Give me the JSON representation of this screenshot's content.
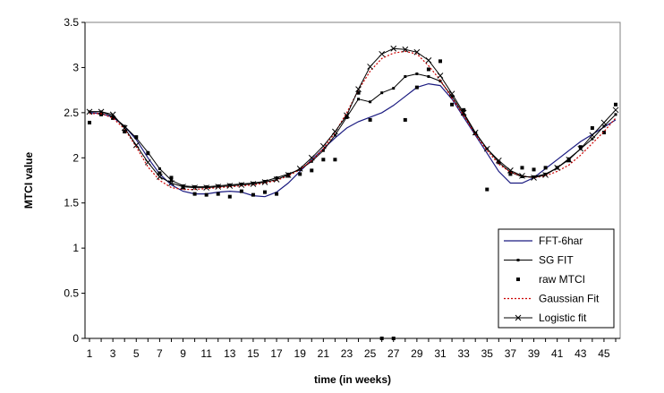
{
  "chart_data": {
    "type": "line",
    "title": "",
    "xlabel": "time  (in weeks)",
    "ylabel": "MTCI value",
    "xlim": [
      1,
      46
    ],
    "ylim": [
      0,
      3.5
    ],
    "x_ticks": [
      1,
      3,
      5,
      7,
      9,
      11,
      13,
      15,
      17,
      19,
      21,
      23,
      25,
      27,
      29,
      31,
      33,
      35,
      37,
      39,
      41,
      43,
      45
    ],
    "y_ticks": [
      0,
      0.5,
      1,
      1.5,
      2,
      2.5,
      3,
      3.5
    ],
    "x_tick_labels": [
      "1",
      "3",
      "5",
      "7",
      "9",
      "11",
      "13",
      "15",
      "17",
      "19",
      "21",
      "23",
      "25",
      "27",
      "29",
      "31",
      "33",
      "35",
      "37",
      "39",
      "41",
      "43",
      "45"
    ],
    "y_tick_labels": [
      "0",
      "0.5",
      "1",
      "1.5",
      "2",
      "2.5",
      "3",
      "3.5"
    ],
    "grid": false,
    "legend_position": "bottom-right",
    "x": [
      1,
      2,
      3,
      4,
      5,
      6,
      7,
      8,
      9,
      10,
      11,
      12,
      13,
      14,
      15,
      16,
      17,
      18,
      19,
      20,
      21,
      22,
      23,
      24,
      25,
      26,
      27,
      28,
      29,
      30,
      31,
      32,
      33,
      34,
      35,
      36,
      37,
      38,
      39,
      40,
      41,
      42,
      43,
      44,
      45,
      46
    ],
    "series": [
      {
        "name": "FFT-6har",
        "style": "line",
        "color": "#1a1a80",
        "values": [
          2.5,
          2.49,
          2.45,
          2.35,
          2.2,
          2.0,
          1.82,
          1.7,
          1.63,
          1.6,
          1.6,
          1.62,
          1.63,
          1.62,
          1.58,
          1.57,
          1.62,
          1.72,
          1.85,
          1.98,
          2.1,
          2.22,
          2.33,
          2.4,
          2.45,
          2.5,
          2.58,
          2.68,
          2.78,
          2.82,
          2.8,
          2.65,
          2.45,
          2.25,
          2.05,
          1.85,
          1.72,
          1.72,
          1.78,
          1.88,
          1.98,
          2.08,
          2.18,
          2.26,
          2.34,
          2.42
        ]
      },
      {
        "name": "SG FIT",
        "style": "line-square",
        "color": "#000000",
        "values": [
          2.51,
          2.51,
          2.46,
          2.35,
          2.22,
          2.06,
          1.88,
          1.75,
          1.69,
          1.68,
          1.68,
          1.69,
          1.7,
          1.71,
          1.72,
          1.74,
          1.78,
          1.82,
          1.87,
          1.96,
          2.08,
          2.25,
          2.45,
          2.65,
          2.62,
          2.72,
          2.77,
          2.9,
          2.93,
          2.9,
          2.85,
          2.68,
          2.48,
          2.27,
          2.1,
          1.95,
          1.84,
          1.79,
          1.79,
          1.82,
          1.89,
          1.99,
          2.1,
          2.21,
          2.35,
          2.48
        ]
      },
      {
        "name": "raw MTCI",
        "style": "marker",
        "color": "#000000",
        "values": [
          2.39,
          2.48,
          2.44,
          2.29,
          2.23,
          2.05,
          1.83,
          1.78,
          1.67,
          1.6,
          1.59,
          1.6,
          1.57,
          1.63,
          1.59,
          1.62,
          1.6,
          1.8,
          1.82,
          1.86,
          1.98,
          1.98,
          2.45,
          2.72,
          2.42,
          0.0,
          0.0,
          2.42,
          2.78,
          2.98,
          3.07,
          2.59,
          2.53,
          2.27,
          1.65,
          1.95,
          1.82,
          1.89,
          1.87,
          1.89,
          1.89,
          1.97,
          2.12,
          2.33,
          2.28,
          2.59
        ]
      },
      {
        "name": "Gaussian Fit",
        "style": "dotted",
        "color": "#cc0000",
        "values": [
          2.49,
          2.49,
          2.44,
          2.32,
          2.12,
          1.9,
          1.75,
          1.67,
          1.65,
          1.65,
          1.66,
          1.67,
          1.68,
          1.69,
          1.7,
          1.72,
          1.75,
          1.8,
          1.87,
          1.97,
          2.1,
          2.28,
          2.5,
          2.75,
          2.96,
          3.1,
          3.16,
          3.18,
          3.15,
          3.02,
          2.86,
          2.66,
          2.47,
          2.26,
          2.08,
          1.93,
          1.84,
          1.8,
          1.78,
          1.8,
          1.85,
          1.92,
          2.03,
          2.16,
          2.29,
          2.44
        ]
      },
      {
        "name": "Logistic fit",
        "style": "line-x",
        "color": "#000000",
        "values": [
          2.51,
          2.51,
          2.48,
          2.33,
          2.14,
          1.95,
          1.79,
          1.72,
          1.68,
          1.67,
          1.67,
          1.68,
          1.69,
          1.7,
          1.71,
          1.73,
          1.76,
          1.81,
          1.88,
          2.0,
          2.13,
          2.29,
          2.47,
          2.76,
          3.01,
          3.15,
          3.21,
          3.2,
          3.17,
          3.08,
          2.91,
          2.71,
          2.5,
          2.28,
          2.1,
          1.97,
          1.86,
          1.8,
          1.78,
          1.81,
          1.89,
          1.98,
          2.1,
          2.25,
          2.39,
          2.53
        ]
      }
    ]
  }
}
